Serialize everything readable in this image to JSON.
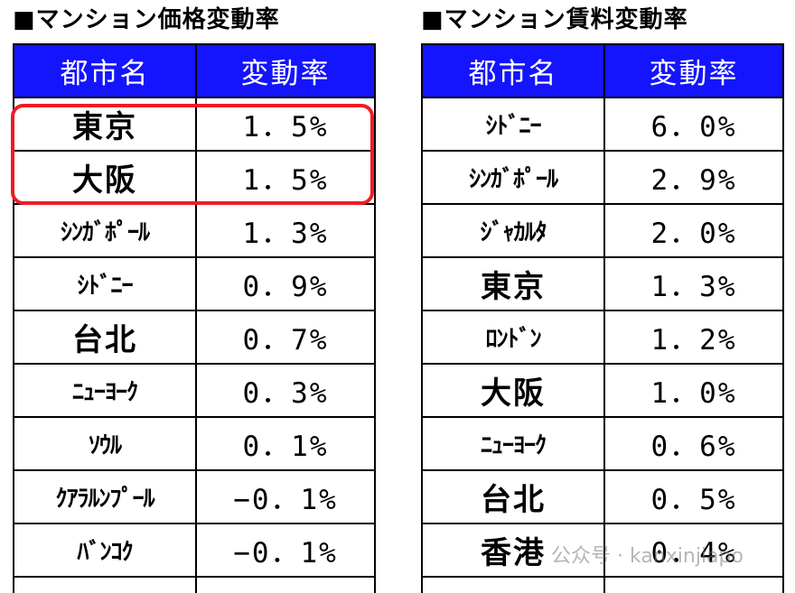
{
  "left": {
    "title": "■マンション価格変動率",
    "header_city": "都市名",
    "header_rate": "変動率",
    "rows": [
      {
        "city": "東京",
        "rate": "1．5%"
      },
      {
        "city": "大阪",
        "rate": "1．5%"
      },
      {
        "city": "ｼﾝｶﾞﾎﾟｰﾙ",
        "rate": "1．3%"
      },
      {
        "city": "ｼﾄﾞﾆｰ",
        "rate": "0．9%"
      },
      {
        "city": "台北",
        "rate": "0．7%"
      },
      {
        "city": "ﾆｭｰﾖｰｸ",
        "rate": "0．3%"
      },
      {
        "city": "ｿｳﾙ",
        "rate": "0．1%"
      },
      {
        "city": "ｸｱﾗﾙﾝﾌﾟｰﾙ",
        "rate": "−0．1%"
      },
      {
        "city": "ﾊﾞﾝｺｸ",
        "rate": "−0．1%"
      }
    ]
  },
  "right": {
    "title": "■マンション賃料変動率",
    "header_city": "都市名",
    "header_rate": "変動率",
    "rows": [
      {
        "city": "ｼﾄﾞﾆｰ",
        "rate": "6．0%"
      },
      {
        "city": "ｼﾝｶﾞﾎﾟｰﾙ",
        "rate": "2．9%"
      },
      {
        "city": "ｼﾞｬｶﾙﾀ",
        "rate": "2．0%"
      },
      {
        "city": "東京",
        "rate": "1．3%"
      },
      {
        "city": "ﾛﾝﾄﾞﾝ",
        "rate": "1．2%"
      },
      {
        "city": "大阪",
        "rate": "1．0%"
      },
      {
        "city": "ﾆｭｰﾖｰｸ",
        "rate": "0．6%"
      },
      {
        "city": "台北",
        "rate": "0．5%"
      },
      {
        "city": "香港",
        "rate": "0．4%"
      }
    ]
  },
  "watermark": "公众号 · kanxinjiapo",
  "colors": {
    "header_bg": "#1414ff",
    "header_text": "#ffffff",
    "highlight_border": "#ef1c24"
  }
}
